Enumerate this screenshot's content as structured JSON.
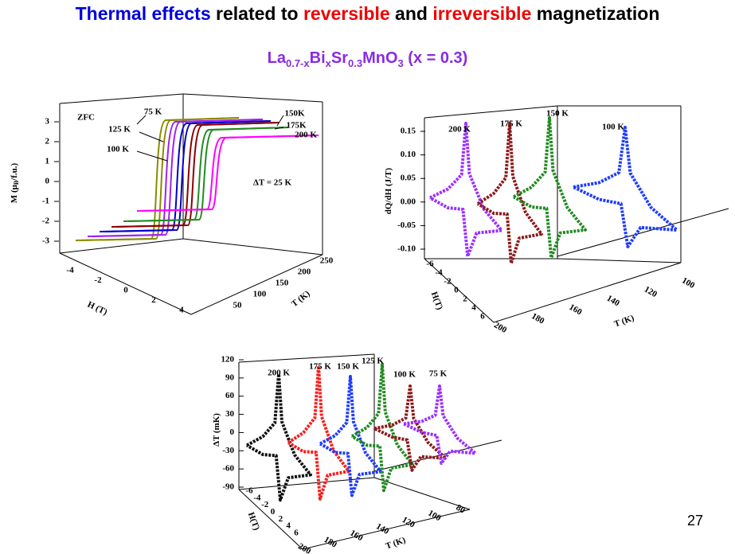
{
  "title": [
    "Thermal effects",
    " related to ",
    "reversible",
    " and ",
    "irreversible",
    " magnetization"
  ],
  "subtitle": [
    "La",
    "0.7-x",
    "Bi",
    "x",
    "Sr",
    "0.3",
    "MnO",
    "3",
    " (x = 0.3)"
  ],
  "panels": [
    {
      "y_axis": {
        "label": [
          "M (μ",
          "B",
          "/f.u.)"
        ],
        "ticks": [
          "3",
          "2",
          "1",
          "0",
          "-1",
          "-2",
          "-3"
        ]
      },
      "h_axis": {
        "label": "H (T)",
        "ticks": [
          "-4",
          "-2",
          "0",
          "2",
          "4"
        ]
      },
      "t_axis": {
        "label": "T (K)",
        "ticks": [
          "50",
          "100",
          "150",
          "200",
          "250"
        ]
      },
      "annotations": [
        "ZFC",
        "75 K",
        "125 K",
        "100 K",
        "150K",
        "175K",
        "200 K",
        "ΔT = 25 K"
      ]
    },
    {
      "y_axis": {
        "label": [
          "dQ/dH (J/T)"
        ],
        "ticks": [
          "0.15",
          "0.10",
          "0.05",
          "0.00",
          "-0.05",
          "-0.10"
        ]
      },
      "h_axis": {
        "label": "H(T)",
        "ticks": [
          "-6",
          "-4",
          "-2",
          "0",
          "2",
          "4",
          "6"
        ]
      },
      "t_axis": {
        "label": "T (K)",
        "ticks": [
          "200",
          "180",
          "160",
          "140",
          "120",
          "100"
        ]
      },
      "annotations": [
        "200 K",
        "175 K",
        "150 K",
        "100 K"
      ]
    },
    {
      "y_axis": {
        "label": [
          "ΔT (mK)"
        ],
        "ticks": [
          "120",
          "90",
          "60",
          "30",
          "0",
          "-30",
          "-60",
          "-90"
        ]
      },
      "h_axis": {
        "label": "H(T)",
        "ticks": [
          "-6",
          "-4",
          "-2",
          "0",
          "2",
          "4",
          "6"
        ]
      },
      "t_axis": {
        "label": "T (K)",
        "ticks": [
          "200",
          "180",
          "160",
          "140",
          "120",
          "100",
          "80"
        ]
      },
      "annotations": [
        "200 K",
        "175 K",
        "150 K",
        "125 K",
        "100 K",
        "75 K"
      ]
    }
  ],
  "page_number": "27"
}
